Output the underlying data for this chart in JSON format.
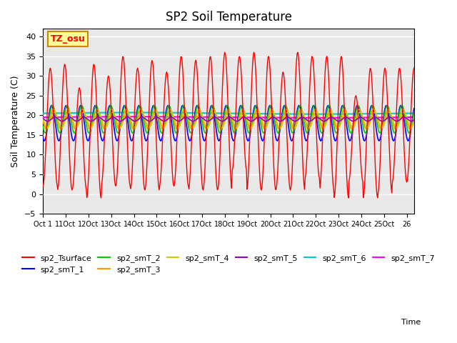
{
  "title": "SP2 Soil Temperature",
  "ylabel": "Soil Temperature (C)",
  "xlabel": "Time",
  "xlim": [
    0,
    25.5
  ],
  "ylim": [
    -5,
    42
  ],
  "yticks": [
    -5,
    0,
    5,
    10,
    15,
    20,
    25,
    30,
    35,
    40
  ],
  "xtick_positions": [
    0,
    1.5625,
    3.125,
    4.6875,
    6.25,
    7.8125,
    9.375,
    10.9375,
    12.5,
    14.0625,
    15.625,
    17.1875,
    18.75,
    20.3125,
    21.875,
    23.4375,
    25.0
  ],
  "xtick_labels": [
    "Oct 1",
    "11Oct",
    "12Oct",
    "13Oct",
    "14Oct",
    "15Oct",
    "16Oct",
    "17Oct",
    "18Oct",
    "19Oct",
    "20Oct",
    "21Oct",
    "22Oct",
    "23Oct",
    "24Oct",
    "25Oct",
    "26"
  ],
  "background_color": "#e8e8e8",
  "annotation_text": "TZ_osu",
  "annotation_bg": "#ffff99",
  "annotation_border": "#cc8800",
  "series_colors": {
    "sp2_Tsurface": "#ff0000",
    "sp2_smT_1": "#0000ff",
    "sp2_smT_2": "#00cc00",
    "sp2_smT_3": "#ff9900",
    "sp2_smT_4": "#cccc00",
    "sp2_smT_5": "#9900cc",
    "sp2_smT_6": "#00cccc",
    "sp2_smT_7": "#ff00ff"
  },
  "surface_peak": [
    32,
    33,
    27,
    33,
    30,
    35,
    32,
    34,
    31,
    35,
    34,
    35,
    36,
    35,
    36,
    35,
    31,
    36,
    35,
    35,
    35,
    25,
    32,
    32,
    32
  ],
  "surface_trough": [
    2,
    1,
    1,
    -1,
    2,
    2,
    1,
    1,
    2,
    2,
    1,
    1,
    1,
    6,
    1,
    1,
    1,
    1,
    4,
    1,
    -1,
    3,
    -1,
    0,
    3
  ]
}
